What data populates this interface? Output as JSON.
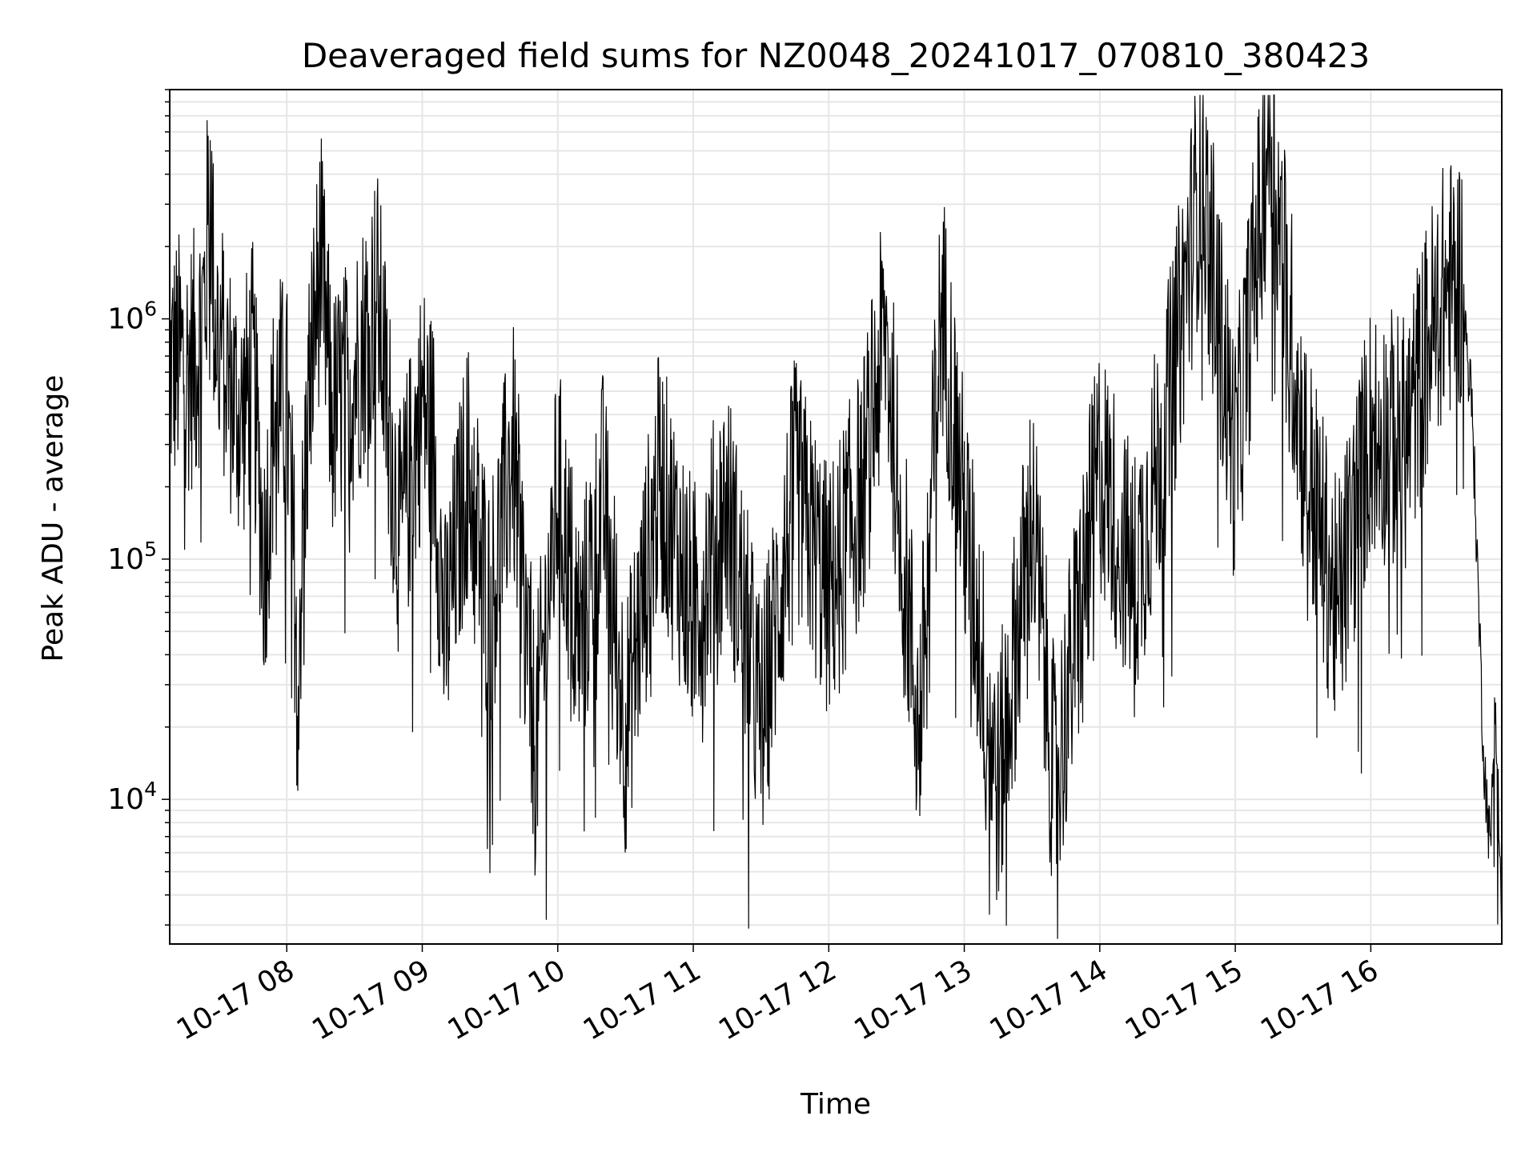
{
  "chart_data": {
    "type": "line",
    "title": "Deaveraged field sums for NZ0048_20241017_070810_380423",
    "xlabel": "Time",
    "ylabel": "Peak ADU - average",
    "x_range": [
      "2024-10-17T07:08:10",
      "2024-10-17T16:58:00"
    ],
    "y_scale": "log",
    "ylim": [
      2500,
      9000000
    ],
    "y_major_ticks": [
      10000,
      100000,
      1000000
    ],
    "y_major_labels": [
      {
        "base": "10",
        "exp": "4"
      },
      {
        "base": "10",
        "exp": "5"
      },
      {
        "base": "10",
        "exp": "6"
      }
    ],
    "x_ticks": [
      "10-17 08",
      "10-17 09",
      "10-17 10",
      "10-17 11",
      "10-17 12",
      "10-17 13",
      "10-17 14",
      "10-17 15",
      "10-17 16"
    ],
    "grid": true,
    "legend": "none",
    "line_color": "#000000",
    "grid_color": "#e6e6e6",
    "series": [
      {
        "points": [
          [
            "2024-10-17T07:08:10",
            620000
          ],
          [
            "2024-10-17T07:12",
            680000
          ],
          [
            "2024-10-17T07:16",
            640000
          ],
          [
            "2024-10-17T07:20",
            700000
          ],
          [
            "2024-10-17T07:24",
            1300000
          ],
          [
            "2024-10-17T07:26",
            4500000
          ],
          [
            "2024-10-17T07:28",
            1000000
          ],
          [
            "2024-10-17T07:30",
            900000
          ],
          [
            "2024-10-17T07:35",
            520000
          ],
          [
            "2024-10-17T07:40",
            380000
          ],
          [
            "2024-10-17T07:45",
            620000
          ],
          [
            "2024-10-17T07:50",
            95000
          ],
          [
            "2024-10-17T07:55",
            480000
          ],
          [
            "2024-10-17T08:00",
            420000
          ],
          [
            "2024-10-17T08:05",
            40000
          ],
          [
            "2024-10-17T08:10",
            560000
          ],
          [
            "2024-10-17T08:15",
            1800000
          ],
          [
            "2024-10-17T08:20",
            380000
          ],
          [
            "2024-10-17T08:30",
            600000
          ],
          [
            "2024-10-17T08:40",
            1300000
          ],
          [
            "2024-10-17T08:45",
            400000
          ],
          [
            "2024-10-17T08:50",
            120000
          ],
          [
            "2024-10-17T09:00",
            450000
          ],
          [
            "2024-10-17T09:05",
            300000
          ],
          [
            "2024-10-17T09:10",
            45000
          ],
          [
            "2024-10-17T09:20",
            250000
          ],
          [
            "2024-10-17T09:30",
            60000
          ],
          [
            "2024-10-17T09:40",
            300000
          ],
          [
            "2024-10-17T09:50",
            16000
          ],
          [
            "2024-10-17T10:00",
            200000
          ],
          [
            "2024-10-17T10:10",
            45000
          ],
          [
            "2024-10-17T10:20",
            180000
          ],
          [
            "2024-10-17T10:30",
            20000
          ],
          [
            "2024-10-17T10:45",
            220000
          ],
          [
            "2024-10-17T11:00",
            60000
          ],
          [
            "2024-10-17T11:15",
            170000
          ],
          [
            "2024-10-17T11:30",
            20000
          ],
          [
            "2024-10-17T11:45",
            200000
          ],
          [
            "2024-10-17T12:00",
            70000
          ],
          [
            "2024-10-17T12:15",
            200000
          ],
          [
            "2024-10-17T12:25",
            900000
          ],
          [
            "2024-10-17T12:30",
            250000
          ],
          [
            "2024-10-17T12:40",
            18000
          ],
          [
            "2024-10-17T12:50",
            1200000
          ],
          [
            "2024-10-17T13:00",
            150000
          ],
          [
            "2024-10-17T13:15",
            11000
          ],
          [
            "2024-10-17T13:30",
            160000
          ],
          [
            "2024-10-17T13:40",
            11000
          ],
          [
            "2024-10-17T14:00",
            250000
          ],
          [
            "2024-10-17T14:15",
            80000
          ],
          [
            "2024-10-17T14:30",
            400000
          ],
          [
            "2024-10-17T14:45",
            4200000
          ],
          [
            "2024-10-17T15:00",
            250000
          ],
          [
            "2024-10-17T15:15",
            6500000
          ],
          [
            "2024-10-17T15:30",
            300000
          ],
          [
            "2024-10-17T15:45",
            60000
          ],
          [
            "2024-10-17T16:00",
            350000
          ],
          [
            "2024-10-17T16:15",
            300000
          ],
          [
            "2024-10-17T16:30",
            1200000
          ],
          [
            "2024-10-17T16:40",
            1500000
          ],
          [
            "2024-10-17T16:45",
            400000
          ],
          [
            "2024-10-17T16:50",
            15000
          ],
          [
            "2024-10-17T16:53",
            6000
          ],
          [
            "2024-10-17T16:55",
            30000
          ],
          [
            "2024-10-17T16:58",
            3000
          ]
        ]
      }
    ]
  }
}
